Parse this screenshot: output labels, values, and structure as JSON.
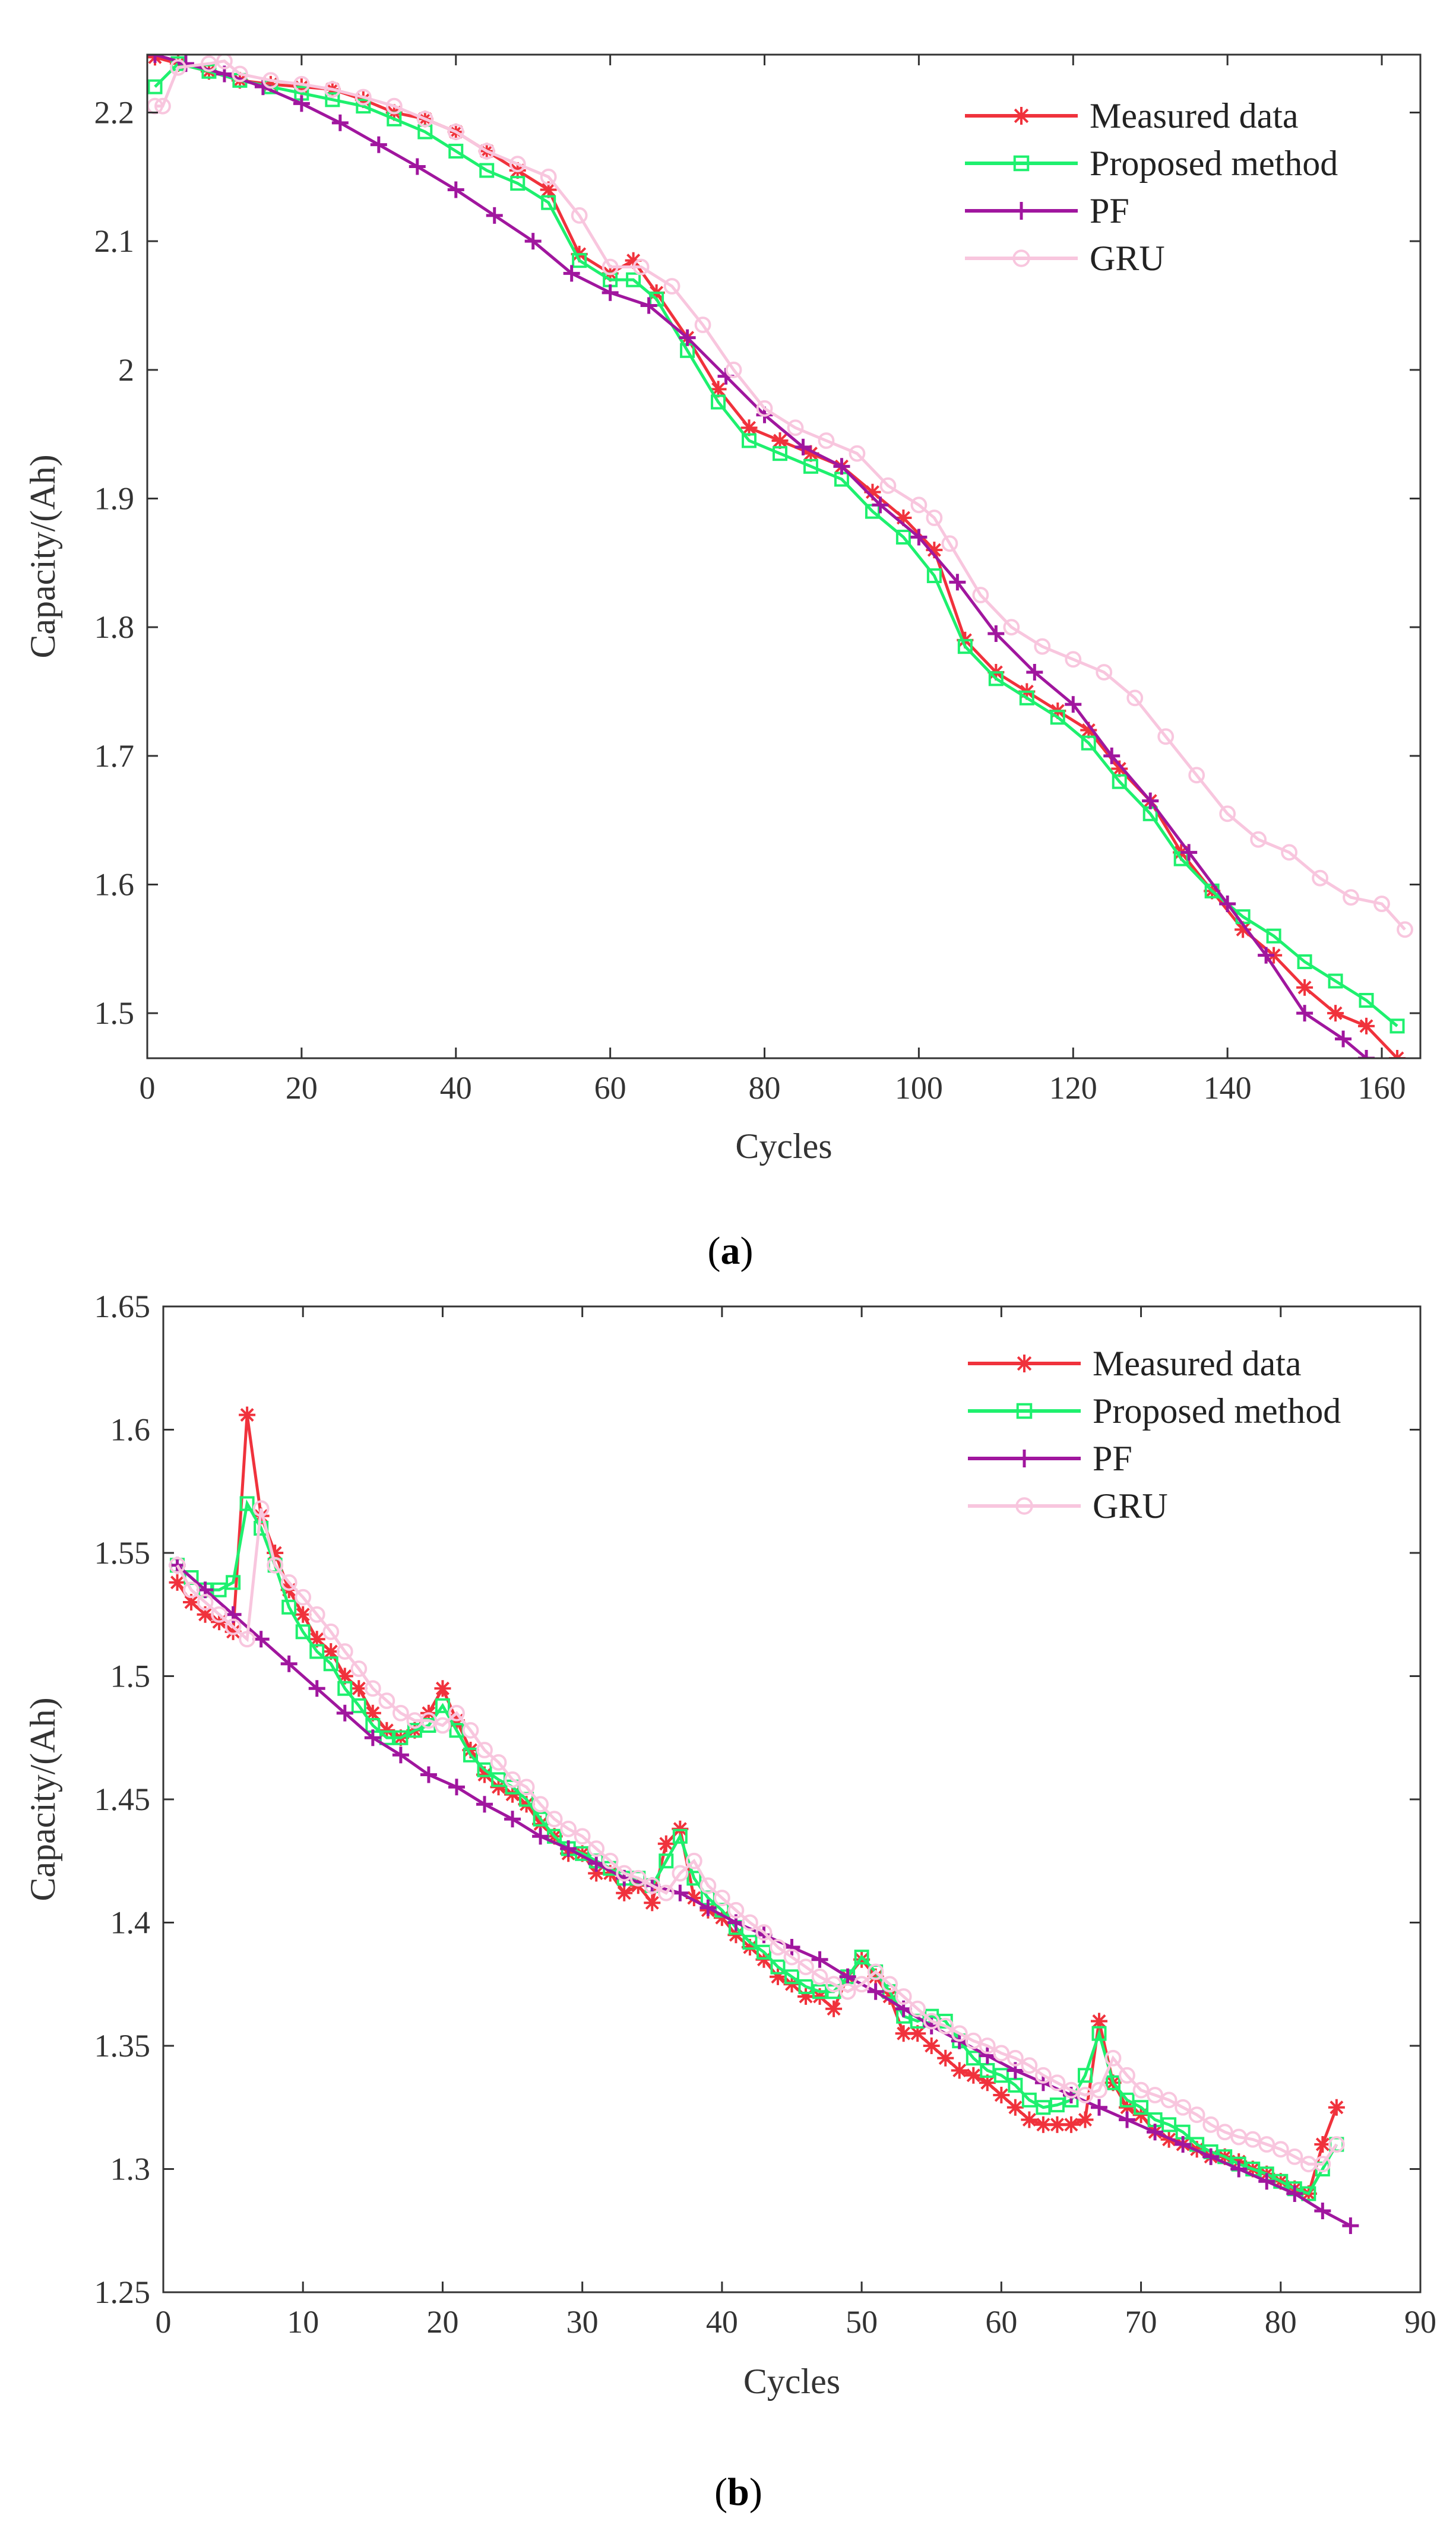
{
  "colors": {
    "measured": "#F0323C",
    "proposed": "#1EF06E",
    "pf": "#A0169E",
    "gru": "#F8C6DE",
    "axis": "#333333"
  },
  "chart_data": [
    {
      "type": "line",
      "caption_open": "(",
      "caption_letter": "a",
      "caption_close": ")",
      "xlabel": "Cycles",
      "ylabel": "Capacity/(Ah)",
      "xlim": [
        0,
        165
      ],
      "ylim": [
        1.465,
        2.245
      ],
      "xticks": [
        0,
        20,
        40,
        60,
        80,
        100,
        120,
        140,
        160
      ],
      "xtick_labels": [
        "0",
        "20",
        "40",
        "60",
        "80",
        "100",
        "120",
        "140",
        "160"
      ],
      "yticks": [
        1.5,
        1.6,
        1.7,
        1.8,
        1.9,
        2.0,
        2.1,
        2.2
      ],
      "ytick_labels": [
        "1.5",
        "1.6",
        "1.7",
        "1.8",
        "1.9",
        "2",
        "2.1",
        "2.2"
      ],
      "legend_position": "top-right",
      "series": [
        {
          "name": "Measured data",
          "marker": "star",
          "x": [
            1,
            4,
            8,
            12,
            16,
            20,
            24,
            28,
            32,
            36,
            40,
            44,
            48,
            52,
            56,
            60,
            63,
            66,
            70,
            74,
            78,
            82,
            86,
            90,
            94,
            98,
            102,
            106,
            110,
            114,
            118,
            122,
            126,
            130,
            134,
            138,
            142,
            146,
            150,
            154,
            158,
            162
          ],
          "y": [
            2.243,
            2.238,
            2.232,
            2.225,
            2.222,
            2.22,
            2.218,
            2.21,
            2.2,
            2.195,
            2.185,
            2.17,
            2.155,
            2.14,
            2.09,
            2.075,
            2.085,
            2.06,
            2.025,
            1.985,
            1.955,
            1.945,
            1.935,
            1.925,
            1.905,
            1.885,
            1.86,
            1.79,
            1.765,
            1.75,
            1.735,
            1.72,
            1.69,
            1.665,
            1.625,
            1.595,
            1.565,
            1.545,
            1.52,
            1.5,
            1.49,
            1.465
          ]
        },
        {
          "name": "Proposed method",
          "marker": "square",
          "x": [
            1,
            4,
            8,
            12,
            16,
            20,
            24,
            28,
            32,
            36,
            40,
            44,
            48,
            52,
            56,
            60,
            63,
            66,
            70,
            74,
            78,
            82,
            86,
            90,
            94,
            98,
            102,
            106,
            110,
            114,
            118,
            122,
            126,
            130,
            134,
            138,
            142,
            146,
            150,
            154,
            158,
            162
          ],
          "y": [
            2.22,
            2.238,
            2.232,
            2.225,
            2.22,
            2.215,
            2.21,
            2.205,
            2.195,
            2.185,
            2.17,
            2.155,
            2.145,
            2.13,
            2.085,
            2.07,
            2.07,
            2.055,
            2.015,
            1.975,
            1.945,
            1.935,
            1.925,
            1.915,
            1.89,
            1.87,
            1.84,
            1.785,
            1.76,
            1.745,
            1.73,
            1.71,
            1.68,
            1.655,
            1.62,
            1.595,
            1.575,
            1.56,
            1.54,
            1.525,
            1.51,
            1.49
          ]
        },
        {
          "name": "PF",
          "marker": "plus",
          "x": [
            1,
            5,
            10,
            15,
            20,
            25,
            30,
            35,
            40,
            45,
            50,
            55,
            60,
            65,
            70,
            75,
            80,
            85,
            90,
            95,
            100,
            105,
            110,
            115,
            120,
            125,
            130,
            135,
            140,
            145,
            150,
            155,
            158
          ],
          "y": [
            2.245,
            2.238,
            2.23,
            2.22,
            2.207,
            2.192,
            2.175,
            2.158,
            2.14,
            2.12,
            2.1,
            2.075,
            2.06,
            2.05,
            2.025,
            1.995,
            1.965,
            1.94,
            1.925,
            1.895,
            1.87,
            1.835,
            1.795,
            1.765,
            1.74,
            1.7,
            1.665,
            1.625,
            1.585,
            1.545,
            1.5,
            1.48,
            1.465
          ]
        },
        {
          "name": "GRU",
          "marker": "circle",
          "x": [
            1,
            2,
            4,
            8,
            10,
            12,
            16,
            20,
            24,
            28,
            32,
            36,
            40,
            44,
            48,
            52,
            56,
            60,
            64,
            68,
            72,
            76,
            80,
            84,
            88,
            92,
            96,
            100,
            102,
            104,
            108,
            112,
            116,
            120,
            124,
            128,
            132,
            136,
            140,
            144,
            148,
            152,
            156,
            160,
            163
          ],
          "y": [
            2.205,
            2.205,
            2.235,
            2.238,
            2.24,
            2.23,
            2.225,
            2.222,
            2.218,
            2.212,
            2.205,
            2.195,
            2.185,
            2.17,
            2.16,
            2.15,
            2.12,
            2.08,
            2.08,
            2.065,
            2.035,
            2.0,
            1.97,
            1.955,
            1.945,
            1.935,
            1.91,
            1.895,
            1.885,
            1.865,
            1.825,
            1.8,
            1.785,
            1.775,
            1.765,
            1.745,
            1.715,
            1.685,
            1.655,
            1.635,
            1.625,
            1.605,
            1.59,
            1.585,
            1.565
          ]
        }
      ]
    },
    {
      "type": "line",
      "caption_open": "(",
      "caption_letter": "b",
      "caption_close": ")",
      "xlabel": "Cycles",
      "ylabel": "Capacity/(Ah)",
      "xlim": [
        0,
        90
      ],
      "ylim": [
        1.25,
        1.65
      ],
      "xticks": [
        0,
        10,
        20,
        30,
        40,
        50,
        60,
        70,
        80,
        90
      ],
      "xtick_labels": [
        "0",
        "10",
        "20",
        "30",
        "40",
        "50",
        "60",
        "70",
        "80",
        "90"
      ],
      "yticks": [
        1.25,
        1.3,
        1.35,
        1.4,
        1.45,
        1.5,
        1.55,
        1.6,
        1.65
      ],
      "ytick_labels": [
        "1.25",
        "1.3",
        "1.35",
        "1.4",
        "1.45",
        "1.5",
        "1.55",
        "1.6",
        "1.65"
      ],
      "legend_position": "top-right",
      "series": [
        {
          "name": "Measured data",
          "marker": "star",
          "x": [
            1,
            2,
            3,
            4,
            5,
            6,
            7,
            8,
            9,
            10,
            11,
            12,
            13,
            14,
            15,
            16,
            17,
            18,
            19,
            20,
            21,
            22,
            23,
            24,
            25,
            26,
            27,
            28,
            29,
            30,
            31,
            32,
            33,
            34,
            35,
            36,
            37,
            38,
            39,
            40,
            41,
            42,
            43,
            44,
            45,
            46,
            47,
            48,
            49,
            50,
            51,
            52,
            53,
            54,
            55,
            56,
            57,
            58,
            59,
            60,
            61,
            62,
            63,
            64,
            65,
            66,
            67,
            68,
            69,
            70,
            71,
            72,
            73,
            74,
            75,
            76,
            77,
            78,
            79,
            80,
            81,
            82,
            83,
            84
          ],
          "y": [
            1.538,
            1.53,
            1.525,
            1.522,
            1.518,
            1.606,
            1.565,
            1.55,
            1.535,
            1.525,
            1.515,
            1.51,
            1.5,
            1.495,
            1.485,
            1.478,
            1.475,
            1.478,
            1.485,
            1.495,
            1.482,
            1.47,
            1.46,
            1.455,
            1.452,
            1.448,
            1.44,
            1.435,
            1.428,
            1.428,
            1.42,
            1.42,
            1.412,
            1.415,
            1.408,
            1.432,
            1.438,
            1.41,
            1.405,
            1.402,
            1.395,
            1.39,
            1.385,
            1.378,
            1.375,
            1.37,
            1.37,
            1.365,
            1.378,
            1.385,
            1.378,
            1.37,
            1.355,
            1.355,
            1.35,
            1.345,
            1.34,
            1.338,
            1.335,
            1.33,
            1.325,
            1.32,
            1.318,
            1.318,
            1.318,
            1.32,
            1.36,
            1.335,
            1.325,
            1.322,
            1.315,
            1.312,
            1.31,
            1.308,
            1.305,
            1.305,
            1.303,
            1.3,
            1.298,
            1.295,
            1.292,
            1.29,
            1.31,
            1.325
          ]
        },
        {
          "name": "Proposed method",
          "marker": "square",
          "x": [
            1,
            2,
            3,
            4,
            5,
            6,
            7,
            8,
            9,
            10,
            11,
            12,
            13,
            14,
            15,
            16,
            17,
            18,
            19,
            20,
            21,
            22,
            23,
            24,
            25,
            26,
            27,
            28,
            29,
            30,
            31,
            32,
            33,
            34,
            35,
            36,
            37,
            38,
            39,
            40,
            41,
            42,
            43,
            44,
            45,
            46,
            47,
            48,
            49,
            50,
            51,
            52,
            53,
            54,
            55,
            56,
            57,
            58,
            59,
            60,
            61,
            62,
            63,
            64,
            65,
            66,
            67,
            68,
            69,
            70,
            71,
            72,
            73,
            74,
            75,
            76,
            77,
            78,
            79,
            80,
            81,
            82,
            83,
            84
          ],
          "y": [
            1.545,
            1.54,
            1.535,
            1.535,
            1.538,
            1.57,
            1.56,
            1.545,
            1.528,
            1.518,
            1.51,
            1.505,
            1.495,
            1.488,
            1.48,
            1.475,
            1.475,
            1.478,
            1.48,
            1.488,
            1.478,
            1.468,
            1.462,
            1.458,
            1.455,
            1.45,
            1.442,
            1.435,
            1.43,
            1.428,
            1.425,
            1.422,
            1.418,
            1.418,
            1.415,
            1.425,
            1.435,
            1.418,
            1.41,
            1.405,
            1.398,
            1.392,
            1.388,
            1.382,
            1.378,
            1.374,
            1.372,
            1.372,
            1.378,
            1.386,
            1.38,
            1.372,
            1.362,
            1.36,
            1.362,
            1.36,
            1.352,
            1.345,
            1.34,
            1.338,
            1.334,
            1.328,
            1.325,
            1.326,
            1.328,
            1.338,
            1.355,
            1.335,
            1.328,
            1.325,
            1.32,
            1.318,
            1.315,
            1.31,
            1.307,
            1.305,
            1.302,
            1.3,
            1.298,
            1.295,
            1.292,
            1.29,
            1.3,
            1.31
          ]
        },
        {
          "name": "PF",
          "marker": "plus",
          "x": [
            1,
            3,
            5,
            7,
            9,
            11,
            13,
            15,
            17,
            19,
            21,
            23,
            25,
            27,
            29,
            31,
            33,
            35,
            37,
            39,
            41,
            43,
            45,
            47,
            49,
            51,
            53,
            55,
            57,
            59,
            61,
            63,
            65,
            67,
            69,
            71,
            73,
            75,
            77,
            79,
            81,
            83,
            85
          ],
          "y": [
            1.545,
            1.535,
            1.525,
            1.515,
            1.505,
            1.495,
            1.485,
            1.475,
            1.468,
            1.46,
            1.455,
            1.448,
            1.442,
            1.435,
            1.43,
            1.424,
            1.418,
            1.415,
            1.412,
            1.406,
            1.4,
            1.395,
            1.39,
            1.385,
            1.378,
            1.372,
            1.365,
            1.358,
            1.352,
            1.346,
            1.34,
            1.335,
            1.33,
            1.325,
            1.32,
            1.315,
            1.31,
            1.305,
            1.3,
            1.295,
            1.29,
            1.283,
            1.277
          ]
        },
        {
          "name": "GRU",
          "marker": "circle",
          "x": [
            1,
            2,
            3,
            4,
            5,
            6,
            7,
            8,
            9,
            10,
            11,
            12,
            13,
            14,
            15,
            16,
            17,
            18,
            19,
            20,
            21,
            22,
            23,
            24,
            25,
            26,
            27,
            28,
            29,
            30,
            31,
            32,
            33,
            34,
            35,
            36,
            37,
            38,
            39,
            40,
            41,
            42,
            43,
            44,
            45,
            46,
            47,
            48,
            49,
            50,
            51,
            52,
            53,
            54,
            55,
            56,
            57,
            58,
            59,
            60,
            61,
            62,
            63,
            64,
            65,
            66,
            67,
            68,
            69,
            70,
            71,
            72,
            73,
            74,
            75,
            76,
            77,
            78,
            79,
            80,
            81,
            82,
            83,
            84
          ],
          "y": [
            1.545,
            1.535,
            1.53,
            1.525,
            1.52,
            1.515,
            1.568,
            1.545,
            1.538,
            1.532,
            1.525,
            1.518,
            1.51,
            1.503,
            1.495,
            1.49,
            1.485,
            1.482,
            1.482,
            1.48,
            1.485,
            1.478,
            1.47,
            1.465,
            1.458,
            1.455,
            1.448,
            1.442,
            1.438,
            1.435,
            1.43,
            1.425,
            1.42,
            1.418,
            1.415,
            1.412,
            1.42,
            1.425,
            1.415,
            1.41,
            1.405,
            1.4,
            1.396,
            1.39,
            1.386,
            1.382,
            1.378,
            1.375,
            1.372,
            1.375,
            1.38,
            1.375,
            1.37,
            1.365,
            1.36,
            1.358,
            1.355,
            1.352,
            1.35,
            1.347,
            1.345,
            1.342,
            1.338,
            1.335,
            1.332,
            1.33,
            1.332,
            1.345,
            1.338,
            1.332,
            1.33,
            1.328,
            1.325,
            1.322,
            1.318,
            1.315,
            1.313,
            1.312,
            1.31,
            1.308,
            1.305,
            1.302,
            1.302,
            1.31
          ]
        }
      ]
    }
  ]
}
